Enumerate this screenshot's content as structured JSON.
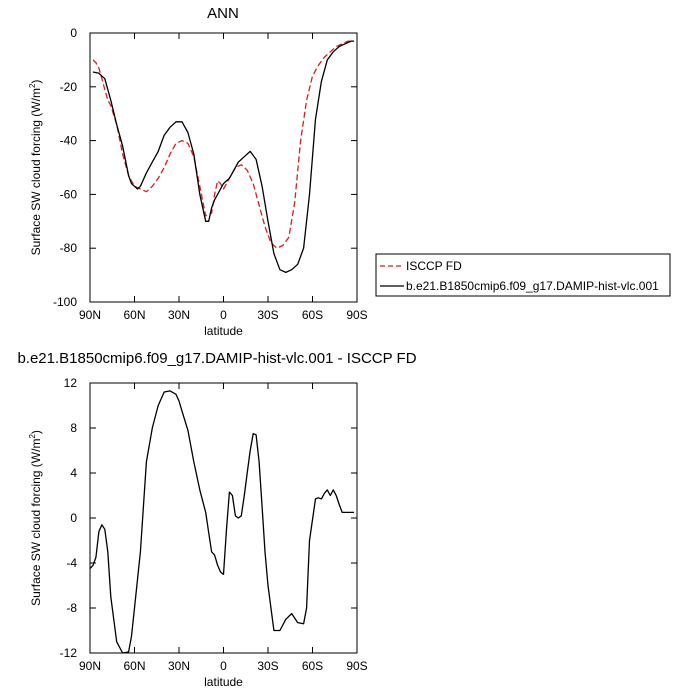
{
  "chart_data": [
    {
      "type": "line",
      "title": "ANN",
      "xlabel": "latitude",
      "ylabel": "Surface SW cloud forcing (W/m",
      "ylabel_sup": "2",
      "ylabel_end": ")",
      "xlim": [
        90,
        -90
      ],
      "ylim": [
        -100,
        0
      ],
      "x_ticks": [
        90,
        60,
        30,
        0,
        -30,
        -60,
        -90
      ],
      "x_tick_labels": [
        "90N",
        "60N",
        "30N",
        "0",
        "30S",
        "60S",
        "90S"
      ],
      "y_ticks": [
        0,
        -20,
        -40,
        -60,
        -80,
        -100
      ],
      "y_tick_labels": [
        "0",
        "-20",
        "-40",
        "-60",
        "-80",
        "-100"
      ],
      "legend_position": "right",
      "series": [
        {
          "name": "ISCCP FD",
          "color": "#e41a1c",
          "dash": "dashed",
          "x": [
            88,
            86,
            84,
            82,
            80,
            78,
            76,
            72,
            68,
            64,
            60,
            56,
            52,
            48,
            44,
            40,
            36,
            32,
            28,
            24,
            20,
            16,
            12,
            8,
            6,
            4,
            2,
            0,
            -2,
            -4,
            -6,
            -8,
            -12,
            -16,
            -20,
            -24,
            -28,
            -32,
            -36,
            -40,
            -44,
            -48,
            -52,
            -56,
            -60,
            -64,
            -68,
            -72,
            -76,
            -80,
            -84,
            -88
          ],
          "y": [
            -10,
            -11,
            -13,
            -17,
            -21,
            -25,
            -27,
            -34,
            -45,
            -53,
            -57,
            -58,
            -59,
            -57,
            -54,
            -50,
            -45,
            -41,
            -40,
            -41,
            -46,
            -57,
            -68,
            -67,
            -60,
            -55,
            -56,
            -58,
            -56,
            -54,
            -52,
            -50,
            -49,
            -51,
            -56,
            -64,
            -72,
            -78,
            -80,
            -79,
            -76,
            -63,
            -40,
            -25,
            -16,
            -12,
            -9,
            -7,
            -5,
            -4,
            -3,
            -3
          ]
        },
        {
          "name": "b.e21.B1850cmip6.f09_g17.DAMIP-hist-vlc.001",
          "color": "#000000",
          "dash": "solid",
          "x": [
            88,
            84,
            80,
            76,
            72,
            68,
            64,
            62,
            60,
            58,
            56,
            52,
            48,
            44,
            40,
            36,
            32,
            28,
            24,
            20,
            16,
            12,
            10,
            8,
            6,
            4,
            2,
            0,
            -2,
            -4,
            -6,
            -8,
            -10,
            -14,
            -18,
            -22,
            -26,
            -30,
            -34,
            -38,
            -42,
            -46,
            -50,
            -54,
            -58,
            -62,
            -66,
            -70,
            -74,
            -78,
            -82,
            -86,
            -88
          ],
          "y": [
            -14.5,
            -15,
            -17,
            -25,
            -34,
            -42,
            -53,
            -56,
            -57,
            -58,
            -57,
            -52,
            -48,
            -44,
            -38,
            -35,
            -33,
            -33,
            -37,
            -45,
            -60,
            -70,
            -70,
            -65,
            -62,
            -60,
            -58,
            -56,
            -55,
            -54,
            -52,
            -50,
            -48,
            -46,
            -44,
            -47,
            -57,
            -70,
            -82,
            -88,
            -89,
            -88,
            -86,
            -80,
            -60,
            -32,
            -18,
            -10,
            -7,
            -5,
            -4,
            -3,
            -3
          ]
        }
      ]
    },
    {
      "type": "line",
      "title": "b.e21.B1850cmip6.f09_g17.DAMIP-hist-vlc.001 - ISCCP FD",
      "xlabel": "latitude",
      "ylabel": "Surface SW cloud forcing (W/m",
      "ylabel_sup": "2",
      "ylabel_end": ")",
      "xlim": [
        90,
        -90
      ],
      "ylim": [
        -12,
        12
      ],
      "x_ticks": [
        90,
        60,
        30,
        0,
        -30,
        -60,
        -90
      ],
      "x_tick_labels": [
        "90N",
        "60N",
        "30N",
        "0",
        "30S",
        "60S",
        "90S"
      ],
      "y_ticks": [
        12,
        8,
        4,
        0,
        -4,
        -8,
        -12
      ],
      "y_tick_labels": [
        "12",
        "8",
        "4",
        "0",
        "-4",
        "-8",
        "-12"
      ],
      "series": [
        {
          "color": "#000000",
          "dash": "solid",
          "x": [
            90,
            88,
            86,
            84,
            82,
            80,
            78,
            76,
            72,
            68,
            64,
            62,
            60,
            56,
            52,
            48,
            44,
            40,
            36,
            32,
            30,
            28,
            24,
            20,
            16,
            12,
            10,
            8,
            6,
            4,
            2,
            0,
            -2,
            -4,
            -6,
            -8,
            -10,
            -12,
            -14,
            -16,
            -18,
            -20,
            -22,
            -24,
            -26,
            -28,
            -30,
            -34,
            -38,
            -42,
            -46,
            -50,
            -54,
            -56,
            -58,
            -62,
            -64,
            -66,
            -68,
            -70,
            -72,
            -74,
            -76,
            -78,
            -80,
            -82,
            -84,
            -86,
            -88
          ],
          "y": [
            -4.5,
            -4.2,
            -3.5,
            -1.2,
            -0.6,
            -1.0,
            -3.0,
            -7.0,
            -11.0,
            -12.0,
            -11.9,
            -10.5,
            -8.0,
            -3.0,
            5.0,
            8.0,
            10.0,
            11.2,
            11.3,
            11.0,
            10.4,
            9.5,
            7.8,
            5.0,
            2.5,
            0.5,
            -1.3,
            -3.0,
            -3.3,
            -4.2,
            -4.8,
            -5.0,
            -1.0,
            2.3,
            2.0,
            0.2,
            0.0,
            0.2,
            2.0,
            4.0,
            6.0,
            7.5,
            7.4,
            5.0,
            1.0,
            -3.0,
            -6.0,
            -10.0,
            -10.0,
            -9.0,
            -8.5,
            -9.3,
            -9.4,
            -8.0,
            -2.0,
            1.7,
            1.8,
            1.7,
            2.2,
            2.5,
            2.0,
            2.5,
            2.0,
            1.2,
            0.5,
            0.5,
            0.5,
            0.5,
            0.5
          ]
        }
      ]
    }
  ]
}
